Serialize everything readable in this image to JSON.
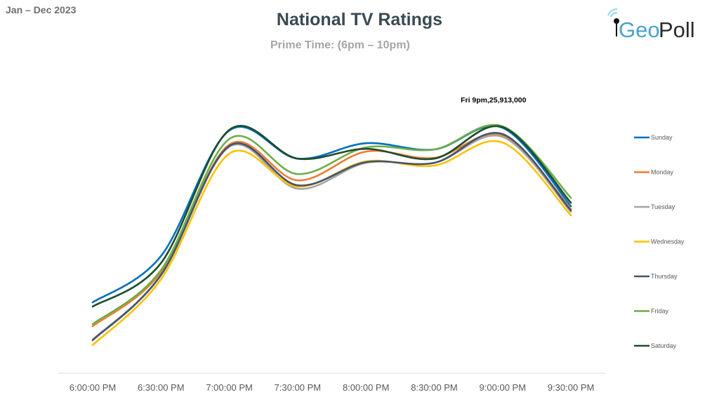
{
  "header": {
    "period": "Jan – Dec 2023",
    "logo_text": "GeoPoll",
    "logo_colors": {
      "geo": "#4ba3c7",
      "poll": "#2b2b2b"
    }
  },
  "chart_data": {
    "type": "line",
    "title": "National TV Ratings",
    "subtitle": "Prime Time: (6pm – 10pm)",
    "xlabel": "",
    "ylabel": "",
    "smoothed": true,
    "grid": false,
    "y_axis_visible": false,
    "ylim": [
      0,
      31000000
    ],
    "legend_position": "right",
    "categories": [
      "6:00:00 PM",
      "6:30:00 PM",
      "7:00:00 PM",
      "7:30:00 PM",
      "8:00:00 PM",
      "8:30:00 PM",
      "9:00:00 PM",
      "9:30:00 PM"
    ],
    "series": [
      {
        "name": "Sunday",
        "color": "#0070c0",
        "values": [
          7430000,
          12290000,
          25470000,
          22520000,
          24140000,
          23480000,
          25760000,
          17520000
        ]
      },
      {
        "name": "Monday",
        "color": "#ed7d31",
        "values": [
          4930000,
          10600000,
          23990000,
          20240000,
          23260000,
          22600000,
          24950000,
          17220000
        ]
      },
      {
        "name": "Tuesday",
        "color": "#a5a5a5",
        "values": [
          3530000,
          10300000,
          23770000,
          19360000,
          22080000,
          22080000,
          24800000,
          16930000
        ]
      },
      {
        "name": "Wednesday",
        "color": "#ffc000",
        "values": [
          2940000,
          9860000,
          23040000,
          19580000,
          22230000,
          21790000,
          24210000,
          16560000
        ]
      },
      {
        "name": "Thursday",
        "color": "#44546a",
        "values": [
          3460000,
          10300000,
          23850000,
          19720000,
          22150000,
          22080000,
          25100000,
          17080000
        ]
      },
      {
        "name": "Friday",
        "color": "#70ad47",
        "values": [
          5150000,
          10820000,
          24580000,
          20900000,
          23700000,
          23480000,
          25913000,
          18400000
        ]
      },
      {
        "name": "Saturday",
        "color": "#1e4d2b",
        "values": [
          6990000,
          11560000,
          25540000,
          22520000,
          23550000,
          22520000,
          25830000,
          17880000
        ]
      }
    ],
    "annotations": [
      {
        "series": "Friday",
        "category": "9:00:00 PM",
        "text": "Fri 9pm,25,913,000"
      }
    ]
  }
}
